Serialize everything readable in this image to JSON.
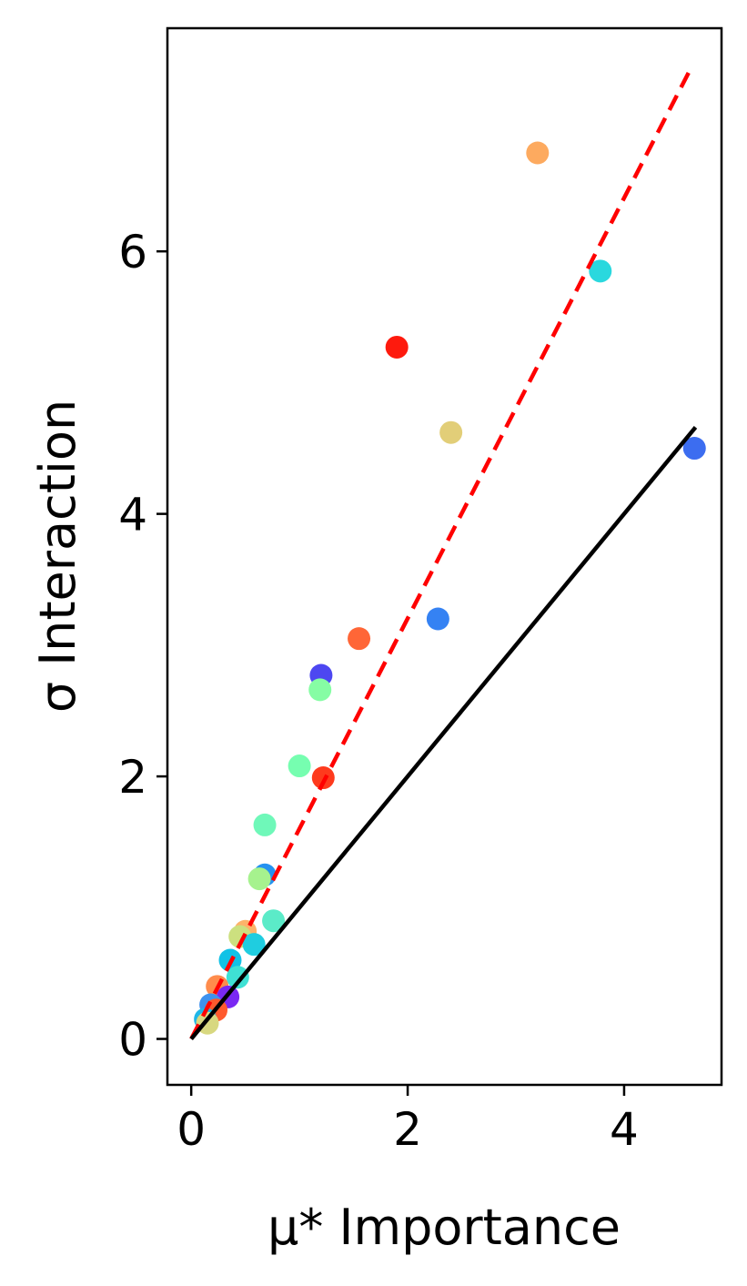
{
  "chart_data": {
    "type": "scatter",
    "xlabel": "μ* Importance",
    "ylabel": "σ Interaction",
    "xlim": [
      -0.22,
      4.9
    ],
    "ylim": [
      -0.35,
      7.7
    ],
    "x_ticks": [
      0,
      2,
      4
    ],
    "y_ticks": [
      0,
      2,
      4,
      6
    ],
    "grid": false,
    "points": [
      {
        "x": 3.2,
        "y": 6.75,
        "color": "#fdaa5f"
      },
      {
        "x": 3.78,
        "y": 5.85,
        "color": "#2ad8de"
      },
      {
        "x": 1.9,
        "y": 5.27,
        "color": "#fe1a0d"
      },
      {
        "x": 2.4,
        "y": 4.62,
        "color": "#e2ce78"
      },
      {
        "x": 4.65,
        "y": 4.5,
        "color": "#3c6df0"
      },
      {
        "x": 2.28,
        "y": 3.2,
        "color": "#3582f3"
      },
      {
        "x": 1.55,
        "y": 3.05,
        "color": "#ff6637"
      },
      {
        "x": 1.2,
        "y": 2.77,
        "color": "#4d47f1"
      },
      {
        "x": 1.19,
        "y": 2.66,
        "color": "#86fda4"
      },
      {
        "x": 1.0,
        "y": 2.08,
        "color": "#76feb0"
      },
      {
        "x": 1.22,
        "y": 1.99,
        "color": "#fe3a1d"
      },
      {
        "x": 0.68,
        "y": 1.63,
        "color": "#6ff8b9"
      },
      {
        "x": 0.68,
        "y": 1.25,
        "color": "#2592f0"
      },
      {
        "x": 0.63,
        "y": 1.22,
        "color": "#a6f28e"
      },
      {
        "x": 0.76,
        "y": 0.9,
        "color": "#5bebc8"
      },
      {
        "x": 0.5,
        "y": 0.82,
        "color": "#fdb36a"
      },
      {
        "x": 0.45,
        "y": 0.78,
        "color": "#cce07f"
      },
      {
        "x": 0.58,
        "y": 0.72,
        "color": "#1fcde0"
      },
      {
        "x": 0.36,
        "y": 0.6,
        "color": "#11c2e6"
      },
      {
        "x": 0.43,
        "y": 0.47,
        "color": "#3fe1d4"
      },
      {
        "x": 0.24,
        "y": 0.4,
        "color": "#ff8c4c"
      },
      {
        "x": 0.34,
        "y": 0.32,
        "color": "#7a28f3"
      },
      {
        "x": 0.18,
        "y": 0.26,
        "color": "#3f92ee"
      },
      {
        "x": 0.23,
        "y": 0.22,
        "color": "#ff5a2e"
      },
      {
        "x": 0.13,
        "y": 0.15,
        "color": "#1fb6e8"
      },
      {
        "x": 0.15,
        "y": 0.12,
        "color": "#d8d880"
      }
    ],
    "lines": [
      {
        "style": "dashed",
        "color": "#ff0000",
        "from": [
          0,
          0
        ],
        "to": [
          4.62,
          7.4
        ]
      },
      {
        "style": "solid",
        "color": "#000000",
        "from": [
          0,
          0
        ],
        "to": [
          4.66,
          4.66
        ]
      }
    ]
  }
}
